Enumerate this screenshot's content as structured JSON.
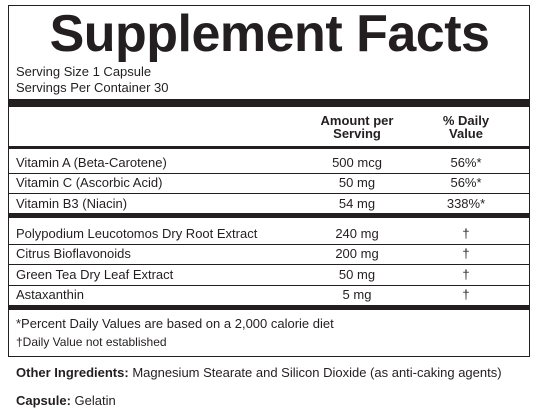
{
  "title": "Supplement Facts",
  "serving": [
    "Serving Size 1 Capsule",
    "Servings Per Container 30"
  ],
  "header": {
    "amount": [
      "Amount per",
      "Serving"
    ],
    "daily_value": [
      "% Daily",
      "Value"
    ]
  },
  "groups": [
    [
      [
        "Vitamin A (Beta-Carotene)",
        "500 mcg",
        "56%*"
      ],
      [
        "Vitamin C (Ascorbic Acid)",
        "50 mg",
        "56%*"
      ],
      [
        "Vitamin B3 (Niacin)",
        "54 mg",
        "338%*"
      ]
    ],
    [
      [
        "Polypodium Leucotomos Dry Root Extract",
        "240 mg",
        "†"
      ],
      [
        "Citrus Bioflavonoids",
        "200 mg",
        "†"
      ],
      [
        "Green Tea Dry Leaf Extract",
        "50 mg",
        "†"
      ],
      [
        "Astaxanthin",
        "5 mg",
        "†"
      ]
    ]
  ],
  "footnotes": [
    "*Percent Daily Values are based on a 2,000 calorie diet",
    "†Daily Value not established"
  ],
  "other_ingredients": {
    "label": "Other Ingredients:",
    "text": "Magnesium Stearate and Silicon Dioxide (as anti-caking agents)"
  },
  "capsule": {
    "label": "Capsule:",
    "text": "Gelatin"
  }
}
